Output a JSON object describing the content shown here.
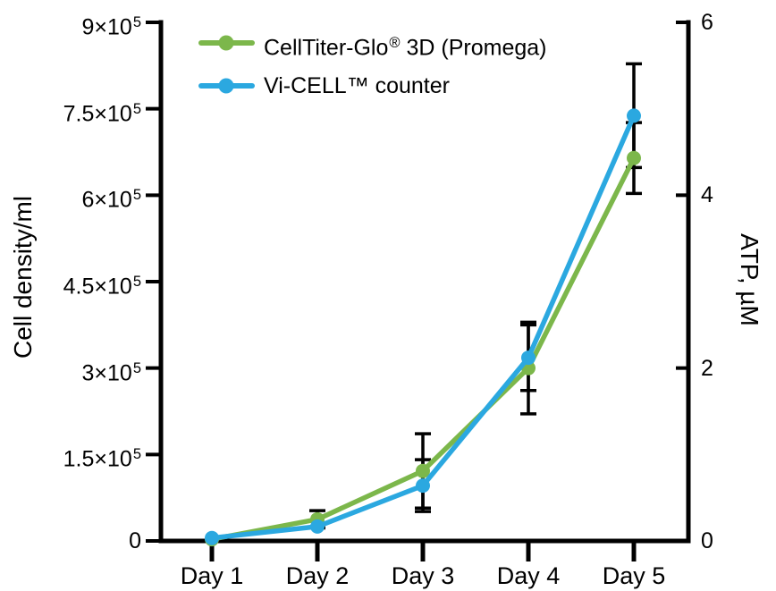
{
  "figure": {
    "background": "#ffffff",
    "axis_color": "#000000",
    "error_bar_color": "#000000"
  },
  "chart_data": {
    "type": "line",
    "title": "",
    "grid": false,
    "x_categories": [
      "Day 1",
      "Day 2",
      "Day 3",
      "Day 4",
      "Day 5"
    ],
    "left_axis": {
      "label": "Cell density/ml",
      "range": [
        0,
        900000
      ],
      "ticks": [
        {
          "value": 0,
          "label": "0",
          "exp": ""
        },
        {
          "value": 150000,
          "label": "1.5×10",
          "exp": "5"
        },
        {
          "value": 300000,
          "label": "3×10",
          "exp": "5"
        },
        {
          "value": 450000,
          "label": "4.5×10",
          "exp": "5"
        },
        {
          "value": 600000,
          "label": "6×10",
          "exp": "5"
        },
        {
          "value": 750000,
          "label": "7.5×10",
          "exp": "5"
        },
        {
          "value": 900000,
          "label": "9×10",
          "exp": "5"
        }
      ]
    },
    "right_axis": {
      "label": "ATP, µM",
      "range": [
        0,
        6
      ],
      "ticks": [
        {
          "value": 0,
          "label": "0",
          "exp": ""
        },
        {
          "value": 2,
          "label": "2",
          "exp": ""
        },
        {
          "value": 4,
          "label": "4",
          "exp": ""
        },
        {
          "value": 6,
          "label": "6",
          "exp": ""
        }
      ]
    },
    "series": [
      {
        "name": "CellTiter-Glo® 3D (Promega)",
        "axis": "right",
        "unit": "µM",
        "color": "#7CB74B",
        "values": [
          0.02,
          0.25,
          0.81,
          2.0,
          4.43
        ],
        "errors": [
          0,
          0.1,
          0.43,
          0.53,
          0.41
        ]
      },
      {
        "name": "Vi-CELL™ counter",
        "axis": "left",
        "unit": "cells/ml",
        "color": "#2BA8E0",
        "values": [
          5000,
          25000,
          96000,
          318000,
          738000
        ],
        "errors": [
          0,
          0,
          45000,
          57000,
          90000
        ]
      }
    ],
    "legend": {
      "position": "top-center-inside",
      "items": [
        {
          "color": "#7CB74B",
          "parts": [
            {
              "t": "CellTiter-Glo"
            },
            {
              "t": "®",
              "sup": true
            },
            {
              "t": " 3D (Promega)"
            }
          ]
        },
        {
          "color": "#2BA8E0",
          "parts": [
            {
              "t": "Vi-CELL™ counter"
            }
          ]
        }
      ]
    }
  }
}
